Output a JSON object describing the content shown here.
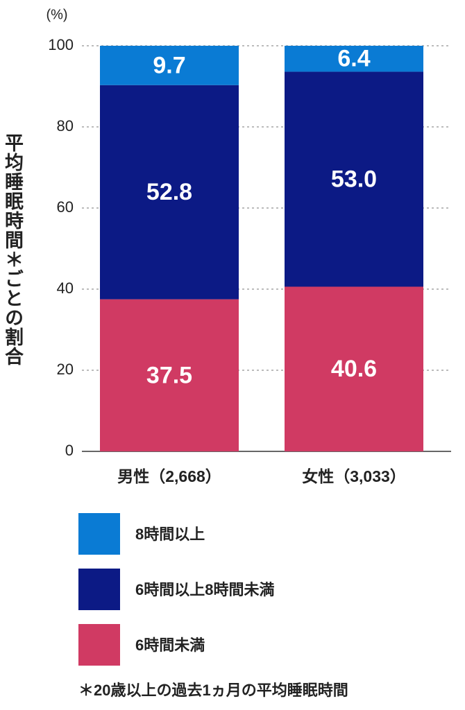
{
  "chart_data": {
    "type": "stacked_bar",
    "y_label": "平均睡眠時間＊ごとの割合",
    "y_unit": "(%)",
    "categories": [
      "男性（2,668）",
      "女性（3,033）"
    ],
    "series": [
      {
        "name": "6時間未満",
        "color": "#d03a63",
        "values": [
          37.5,
          40.6
        ]
      },
      {
        "name": "6時間以上8時間未満",
        "color": "#0c1a85",
        "values": [
          52.8,
          53.0
        ],
        "value_labels": [
          "52.8",
          "53.0"
        ]
      },
      {
        "name": "8時間以上",
        "color": "#0a7bd4",
        "values": [
          9.7,
          6.4
        ]
      }
    ],
    "ylim": [
      0,
      100
    ],
    "yticks": [
      0,
      20,
      40,
      60,
      80,
      100
    ],
    "grid": true,
    "legend": "bottom",
    "footnote": "＊20歳以上の過去1ヵ月の平均睡眠時間"
  }
}
